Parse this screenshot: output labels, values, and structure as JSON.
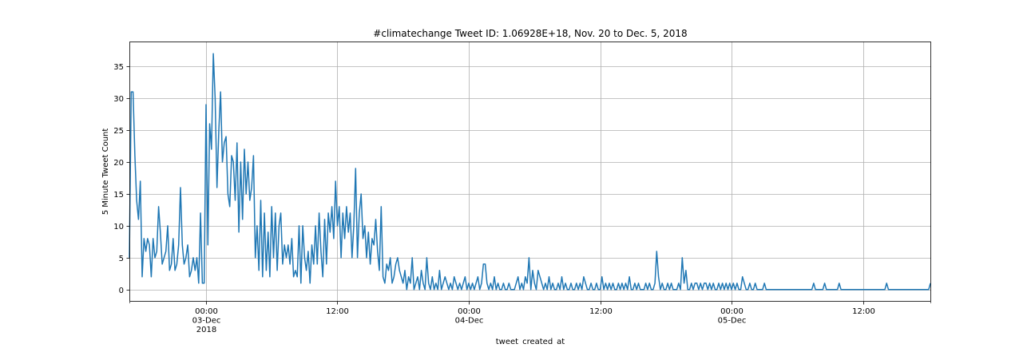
{
  "chart_data": {
    "type": "line",
    "title": "#climatechange Tweet ID: 1.06928E+18, Nov. 20 to Dec. 5, 2018",
    "xlabel": "tweet_created_at",
    "ylabel": "5 Minute Tweet Count",
    "x_start": "2018-12-02 17:00",
    "interval_minutes": 10,
    "xlim": [
      "2018-12-02 17:00",
      "2018-12-05 18:14"
    ],
    "ylim": [
      -1.9,
      38.9
    ],
    "grid": true,
    "line_color": "#1f77b4",
    "y_ticks": [
      0,
      5,
      10,
      15,
      20,
      25,
      30,
      35
    ],
    "x_ticks": [
      {
        "time": "2018-12-03 00:00",
        "label": [
          "00:00",
          "03-Dec",
          "2018"
        ]
      },
      {
        "time": "2018-12-03 12:00",
        "label": [
          "12:00"
        ]
      },
      {
        "time": "2018-12-04 00:00",
        "label": [
          "00:00",
          "04-Dec"
        ]
      },
      {
        "time": "2018-12-04 12:00",
        "label": [
          "12:00"
        ]
      },
      {
        "time": "2018-12-05 00:00",
        "label": [
          "00:00",
          "05-Dec"
        ]
      },
      {
        "time": "2018-12-05 12:00",
        "label": [
          "12:00"
        ]
      }
    ],
    "values": [
      5,
      31,
      31,
      21,
      14,
      11,
      17,
      2,
      8,
      6,
      8,
      7,
      2,
      8,
      5,
      6,
      13,
      9,
      4,
      5,
      6,
      10,
      3,
      4,
      8,
      3,
      4,
      7,
      16,
      7,
      4,
      5,
      7,
      2,
      3,
      5,
      3,
      5,
      1,
      12,
      1,
      1,
      29,
      7,
      26,
      22,
      37,
      30,
      16,
      25,
      31,
      20,
      23,
      24,
      15,
      13,
      21,
      20,
      14,
      23,
      9,
      20,
      11,
      22,
      15,
      20,
      14,
      16,
      21,
      5,
      10,
      3,
      14,
      2,
      12,
      3,
      9,
      2,
      13,
      5,
      12,
      3,
      10,
      12,
      4,
      7,
      5,
      7,
      4,
      8,
      2,
      3,
      2,
      10,
      1,
      10,
      5,
      3,
      6,
      1,
      7,
      4,
      10,
      4,
      12,
      6,
      2,
      11,
      4,
      12,
      9,
      13,
      8,
      17,
      10,
      13,
      5,
      12,
      8,
      13,
      9,
      12,
      5,
      10,
      19,
      5,
      12,
      15,
      8,
      10,
      5,
      9,
      4,
      8,
      7,
      11,
      6,
      3,
      13,
      2,
      1,
      4,
      3,
      5,
      1,
      2,
      4,
      5,
      3,
      2,
      1,
      3,
      0,
      2,
      1,
      5,
      0,
      1,
      2,
      0,
      3,
      1,
      0,
      5,
      1,
      0,
      2,
      0,
      1,
      0,
      3,
      0,
      1,
      2,
      1,
      0,
      1,
      0,
      2,
      1,
      0,
      1,
      0,
      1,
      2,
      0,
      1,
      0,
      1,
      0,
      1,
      2,
      0,
      1,
      4,
      4,
      1,
      0,
      1,
      0,
      2,
      0,
      1,
      0,
      0,
      1,
      0,
      0,
      1,
      0,
      0,
      0,
      1,
      2,
      0,
      1,
      0,
      2,
      1,
      5,
      0,
      3,
      1,
      0,
      3,
      2,
      1,
      0,
      1,
      0,
      2,
      0,
      1,
      0,
      0,
      1,
      0,
      2,
      0,
      1,
      0,
      0,
      1,
      0,
      0,
      1,
      0,
      1,
      0,
      2,
      1,
      0,
      0,
      1,
      0,
      0,
      1,
      0,
      0,
      2,
      0,
      1,
      0,
      1,
      0,
      1,
      0,
      0,
      1,
      0,
      1,
      0,
      1,
      0,
      2,
      0,
      0,
      1,
      0,
      1,
      0,
      0,
      0,
      1,
      0,
      1,
      0,
      0,
      1,
      6,
      2,
      0,
      1,
      0,
      0,
      1,
      0,
      1,
      0,
      0,
      0,
      1,
      0,
      5,
      1,
      3,
      0,
      0,
      1,
      0,
      1,
      1,
      0,
      1,
      0,
      1,
      1,
      0,
      1,
      0,
      1,
      0,
      0,
      1,
      0,
      1,
      0,
      1,
      0,
      1,
      0,
      1,
      0,
      1,
      0,
      0,
      2,
      1,
      0,
      0,
      1,
      0,
      0,
      1,
      0,
      0,
      0,
      0,
      1,
      0,
      0,
      0,
      0,
      0,
      0,
      0,
      0,
      0,
      0,
      0,
      0,
      0,
      0,
      0,
      0,
      0,
      0,
      0,
      0,
      0,
      0,
      0,
      0,
      0,
      0,
      1,
      0,
      0,
      0,
      0,
      0,
      1,
      0,
      0,
      0,
      0,
      0,
      0,
      0,
      1,
      0,
      0,
      0,
      0,
      0,
      0,
      0,
      0,
      0,
      0,
      0,
      0,
      0,
      0,
      0,
      0,
      0,
      0,
      0,
      0,
      0,
      0,
      0,
      0,
      0,
      1,
      0,
      0,
      0,
      0,
      0,
      0,
      0,
      0,
      0,
      0,
      0,
      0,
      0,
      0,
      0,
      0,
      0,
      0,
      0,
      0,
      0,
      0,
      0,
      1
    ]
  }
}
